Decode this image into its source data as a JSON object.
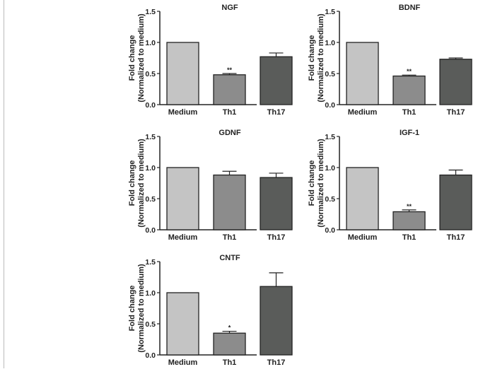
{
  "chart_data": [
    {
      "type": "bar",
      "title": "NGF",
      "categories": [
        "Medium",
        "Th1",
        "Th17"
      ],
      "values": [
        1.0,
        0.48,
        0.77
      ],
      "error": [
        0,
        0.02,
        0.06
      ],
      "significance": [
        "",
        "**",
        ""
      ],
      "ylabel": "Fold change\n(Normalized to medium)",
      "ylim": [
        0,
        1.5
      ],
      "yticks": [
        "0.0",
        "0.5",
        "1.0",
        "1.5"
      ],
      "colors": [
        "#c4c4c4",
        "#8c8c8c",
        "#5a5c5a"
      ]
    },
    {
      "type": "bar",
      "title": "BDNF",
      "categories": [
        "Medium",
        "Th1",
        "Th17"
      ],
      "values": [
        1.0,
        0.46,
        0.73
      ],
      "error": [
        0,
        0.015,
        0.02
      ],
      "significance": [
        "",
        "**",
        ""
      ],
      "ylabel": "Fold change\n(Normalized to medium)",
      "ylim": [
        0,
        1.5
      ],
      "yticks": [
        "0.0",
        "0.5",
        "1.0",
        "1.5"
      ],
      "colors": [
        "#c4c4c4",
        "#8c8c8c",
        "#5a5c5a"
      ]
    },
    {
      "type": "bar",
      "title": "GDNF",
      "categories": [
        "Medium",
        "Th1",
        "Th17"
      ],
      "values": [
        1.0,
        0.88,
        0.84
      ],
      "error": [
        0,
        0.06,
        0.07
      ],
      "significance": [
        "",
        "",
        ""
      ],
      "ylabel": "Fold change\n(Normalized to medium)",
      "ylim": [
        0,
        1.5
      ],
      "yticks": [
        "0.0",
        "0.5",
        "1.0",
        "1.5"
      ],
      "colors": [
        "#c4c4c4",
        "#8c8c8c",
        "#5a5c5a"
      ]
    },
    {
      "type": "bar",
      "title": "IGF-1",
      "categories": [
        "Medium",
        "Th1",
        "Th17"
      ],
      "values": [
        1.0,
        0.29,
        0.88
      ],
      "error": [
        0,
        0.03,
        0.08
      ],
      "significance": [
        "",
        "**",
        ""
      ],
      "ylabel": "Fold change\n(Normalized to medium)",
      "ylim": [
        0,
        1.5
      ],
      "yticks": [
        "0.0",
        "0.5",
        "1.0",
        "1.5"
      ],
      "colors": [
        "#c4c4c4",
        "#8c8c8c",
        "#5a5c5a"
      ]
    },
    {
      "type": "bar",
      "title": "CNTF",
      "categories": [
        "Medium",
        "Th1",
        "Th17"
      ],
      "values": [
        1.0,
        0.35,
        1.1
      ],
      "error": [
        0,
        0.03,
        0.22
      ],
      "significance": [
        "",
        "*",
        ""
      ],
      "ylabel": "Fold change\n(Normalized to medium)",
      "ylim": [
        0,
        1.5
      ],
      "yticks": [
        "0.0",
        "0.5",
        "1.0",
        "1.5"
      ],
      "colors": [
        "#c4c4c4",
        "#8c8c8c",
        "#5a5c5a"
      ]
    }
  ]
}
